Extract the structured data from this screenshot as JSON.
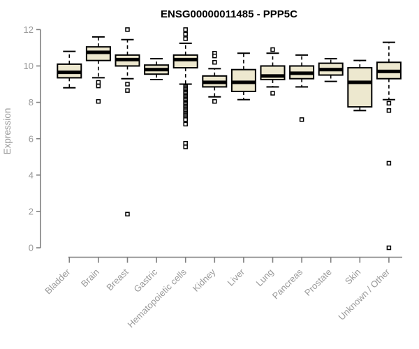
{
  "title": "ENSG00000011485 - PPP5C",
  "colors": {
    "background": "#ffffff",
    "box_fill": "#ede8cf",
    "box_stroke": "#000000",
    "median": "#000000",
    "whisker": "#000000",
    "outlier_stroke": "#000000",
    "outlier_fill": "#ffffff",
    "axis_line": "#808080",
    "tick_label": "#999999",
    "title_color": "#000000"
  },
  "chart_data": {
    "type": "boxplot",
    "title": "ENSG00000011485 - PPP5C",
    "ylabel": "Expression",
    "xlabel": "",
    "ylim": [
      0,
      12
    ],
    "yticks": [
      0,
      2,
      4,
      6,
      8,
      10,
      12
    ],
    "grid": false,
    "legend": "none",
    "x_label_rotation_deg": 45,
    "categories": [
      "Bladder",
      "Brain",
      "Breast",
      "Gastric",
      "Hematopoietic cells",
      "Kidney",
      "Liver",
      "Lung",
      "Pancreas",
      "Prostate",
      "Skin",
      "Unknown / Other"
    ],
    "boxes": [
      {
        "name": "Bladder",
        "whisker_low": 8.8,
        "q1": 9.35,
        "median": 9.65,
        "q3": 10.1,
        "whisker_high": 10.8,
        "outliers": []
      },
      {
        "name": "Brain",
        "whisker_low": 9.35,
        "q1": 10.3,
        "median": 10.75,
        "q3": 11.05,
        "whisker_high": 11.6,
        "outliers": [
          9.1,
          8.9,
          8.05
        ]
      },
      {
        "name": "Breast",
        "whisker_low": 9.3,
        "q1": 10.0,
        "median": 10.35,
        "q3": 10.6,
        "whisker_high": 11.45,
        "outliers": [
          12.0,
          9.0,
          8.65,
          1.85
        ]
      },
      {
        "name": "Gastric",
        "whisker_low": 9.25,
        "q1": 9.55,
        "median": 9.8,
        "q3": 10.05,
        "whisker_high": 10.4,
        "outliers": []
      },
      {
        "name": "Hematopoietic cells",
        "whisker_low": 9.0,
        "q1": 9.9,
        "median": 10.35,
        "q3": 10.6,
        "whisker_high": 11.25,
        "outliers": [
          12.0,
          11.75,
          11.5,
          8.85,
          8.78,
          8.7,
          8.62,
          8.55,
          8.48,
          8.4,
          8.32,
          8.25,
          8.18,
          8.1,
          8.02,
          7.95,
          7.88,
          7.8,
          7.72,
          7.65,
          7.58,
          7.5,
          7.42,
          7.35,
          7.28,
          7.2,
          7.12,
          7.05,
          6.8,
          5.75,
          5.55
        ]
      },
      {
        "name": "Kidney",
        "whisker_low": 8.3,
        "q1": 8.85,
        "median": 9.1,
        "q3": 9.45,
        "whisker_high": 9.85,
        "outliers": [
          10.7,
          10.55,
          10.2,
          8.05
        ]
      },
      {
        "name": "Liver",
        "whisker_low": 8.15,
        "q1": 8.6,
        "median": 9.1,
        "q3": 9.8,
        "whisker_high": 10.7,
        "outliers": []
      },
      {
        "name": "Lung",
        "whisker_low": 8.85,
        "q1": 9.25,
        "median": 9.45,
        "q3": 10.0,
        "whisker_high": 10.7,
        "outliers": [
          10.9,
          8.5
        ]
      },
      {
        "name": "Pancreas",
        "whisker_low": 8.85,
        "q1": 9.3,
        "median": 9.6,
        "q3": 10.0,
        "whisker_high": 10.6,
        "outliers": [
          7.05
        ]
      },
      {
        "name": "Prostate",
        "whisker_low": 9.15,
        "q1": 9.5,
        "median": 9.8,
        "q3": 10.15,
        "whisker_high": 10.4,
        "outliers": []
      },
      {
        "name": "Skin",
        "whisker_low": 7.55,
        "q1": 7.75,
        "median": 9.1,
        "q3": 9.9,
        "whisker_high": 10.3,
        "outliers": []
      },
      {
        "name": "Unknown / Other",
        "whisker_low": 8.15,
        "q1": 9.3,
        "median": 9.7,
        "q3": 10.2,
        "whisker_high": 11.3,
        "outliers": [
          7.95,
          7.55,
          4.65,
          0.0
        ]
      }
    ]
  }
}
